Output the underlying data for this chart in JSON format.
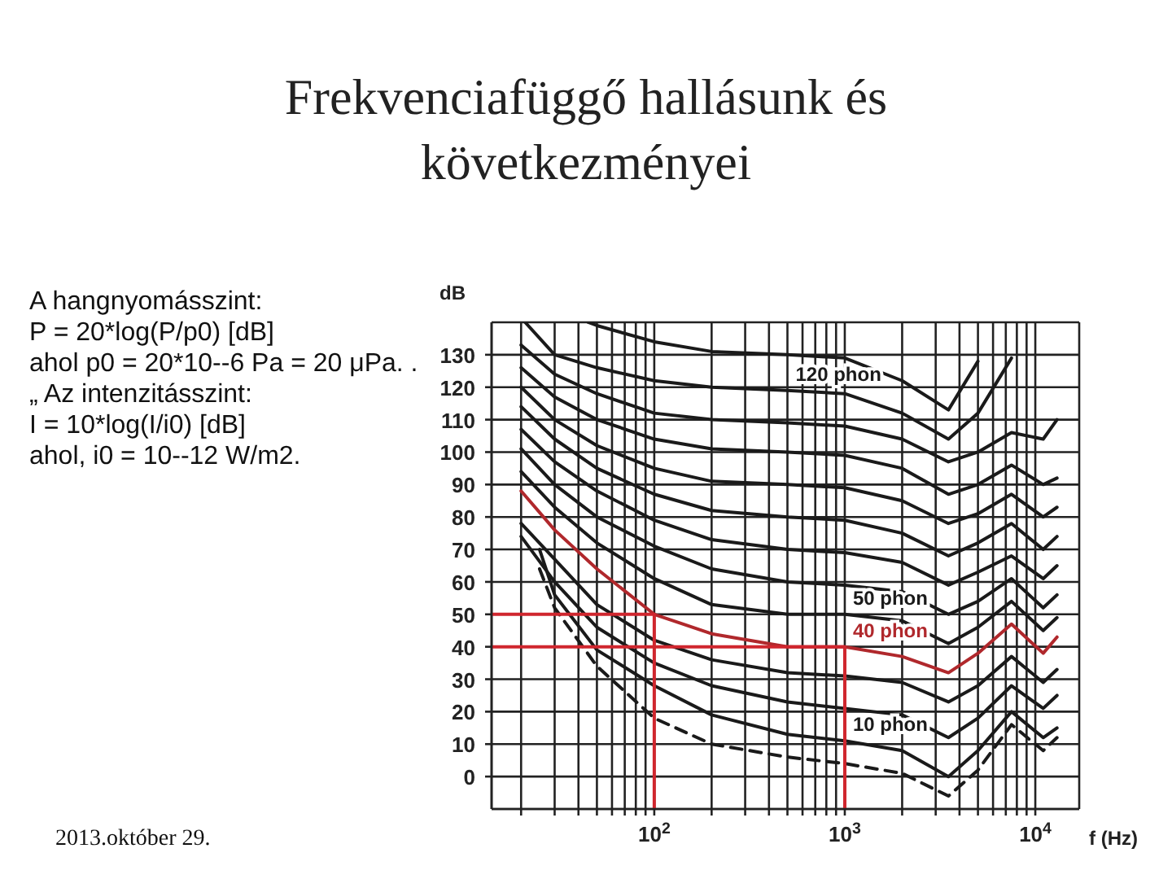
{
  "chart_data": {
    "type": "line",
    "title": "Frekvenciafüggő hallásunk és következményei",
    "xlabel": "f (Hz)",
    "ylabel": "dB",
    "log": "x",
    "grid": true,
    "legend": false,
    "marker": "none",
    "xlim": [
      14,
      17000
    ],
    "ylim": [
      -10,
      140
    ],
    "xticks": [
      {
        "value": 20,
        "label": null
      },
      {
        "value": 30,
        "label": null
      },
      {
        "value": 40,
        "label": null
      },
      {
        "value": 50,
        "label": null
      },
      {
        "value": 60,
        "label": null
      },
      {
        "value": 70,
        "label": null
      },
      {
        "value": 80,
        "label": null
      },
      {
        "value": 90,
        "label": null
      },
      {
        "value": 100,
        "label": "10$^{2}$"
      },
      {
        "value": 200,
        "label": null
      },
      {
        "value": 300,
        "label": null
      },
      {
        "value": 400,
        "label": null
      },
      {
        "value": 500,
        "label": null
      },
      {
        "value": 600,
        "label": null
      },
      {
        "value": 700,
        "label": null
      },
      {
        "value": 800,
        "label": null
      },
      {
        "value": 900,
        "label": null
      },
      {
        "value": 1000,
        "label": "10$^{3}$"
      },
      {
        "value": 2000,
        "label": null
      },
      {
        "value": 3000,
        "label": null
      },
      {
        "value": 4000,
        "label": null
      },
      {
        "value": 5000,
        "label": null
      },
      {
        "value": 6000,
        "label": null
      },
      {
        "value": 7000,
        "label": null
      },
      {
        "value": 8000,
        "label": null
      },
      {
        "value": 9000,
        "label": null
      },
      {
        "value": 10000,
        "label": "10$^{4}$"
      }
    ],
    "yticks": [
      0,
      10,
      20,
      30,
      40,
      50,
      60,
      70,
      80,
      90,
      100,
      110,
      120,
      130
    ],
    "x": [
      20,
      30,
      50,
      100,
      200,
      500,
      1000,
      2000,
      3500,
      5000,
      7500,
      11000,
      13000
    ],
    "series": [
      {
        "color": "#1a1a1a",
        "x": [
          45,
          50,
          100,
          200,
          500,
          1000,
          2000,
          3500,
          5000
        ],
        "values": [
          140,
          139,
          134,
          131,
          130,
          129,
          122,
          113,
          128
        ]
      },
      {
        "name": "120 phon",
        "color": "#1a1a1a",
        "x": [
          21,
          30,
          50,
          100,
          200,
          500,
          1000,
          2000,
          3500,
          5000,
          7500
        ],
        "values": [
          140,
          130,
          126,
          122,
          120,
          119,
          118,
          112,
          104,
          112,
          129
        ]
      },
      {
        "color": "#1a1a1a",
        "values": [
          133,
          124,
          118,
          112,
          110,
          109,
          108,
          104,
          97,
          100,
          106,
          104,
          110
        ]
      },
      {
        "color": "#1a1a1a",
        "values": [
          126,
          117,
          110,
          104,
          101,
          100,
          99,
          95,
          87,
          90,
          96,
          90,
          92
        ]
      },
      {
        "color": "#1a1a1a",
        "values": [
          120,
          110,
          102,
          95,
          91,
          90,
          89,
          85,
          78,
          81,
          87,
          80,
          83
        ]
      },
      {
        "color": "#1a1a1a",
        "values": [
          114,
          104,
          95,
          87,
          82,
          80,
          79,
          75,
          68,
          72,
          78,
          70,
          74
        ]
      },
      {
        "color": "#1a1a1a",
        "values": [
          107,
          97,
          88,
          79,
          73,
          70,
          69,
          66,
          59,
          63,
          68,
          61,
          65
        ]
      },
      {
        "color": "#1a1a1a",
        "values": [
          101,
          90,
          80,
          71,
          64,
          60,
          59,
          57,
          50,
          54,
          61,
          52,
          56
        ]
      },
      {
        "name": "50 phon",
        "color": "#1a1a1a",
        "values": [
          94,
          83,
          72,
          61,
          53,
          50,
          50,
          48,
          41,
          46,
          54,
          45,
          49
        ]
      },
      {
        "name": "40 phon",
        "color": "#b0282c",
        "values": [
          88,
          76,
          64,
          50,
          44,
          40,
          40,
          37,
          32,
          38,
          47,
          38,
          43
        ]
      },
      {
        "color": "#1a1a1a",
        "values": [
          78,
          67,
          53,
          42,
          36,
          32,
          31,
          29,
          23,
          28,
          37,
          29,
          33
        ]
      },
      {
        "color": "#1a1a1a",
        "values": [
          74,
          60,
          46,
          35,
          28,
          23,
          21,
          19,
          12,
          18,
          28,
          21,
          25
        ]
      },
      {
        "name": "10 phon",
        "color": "#1a1a1a",
        "x": [
          25,
          30,
          50,
          100,
          200,
          500,
          1000,
          2000,
          3500,
          5000,
          7500,
          11000,
          13000
        ],
        "values": [
          70,
          56,
          39,
          28,
          19,
          13,
          11,
          8,
          0,
          8,
          20,
          12,
          15
        ]
      },
      {
        "color": "#1a1a1a",
        "line_style": "dashed",
        "x": [
          25,
          30,
          50,
          100,
          200,
          500,
          1000,
          2000,
          3500,
          5000,
          7500,
          11000,
          13000
        ],
        "values": [
          64,
          52,
          34,
          18,
          10,
          6,
          4,
          1,
          -6,
          2,
          16,
          8,
          12
        ]
      },
      {
        "color": "#d0262e",
        "x": [
          14,
          100,
          100
        ],
        "values": [
          50,
          50,
          -10
        ]
      },
      {
        "color": "#d0262e",
        "x": [
          14,
          1000,
          1000
        ],
        "values": [
          40,
          40,
          -10
        ]
      }
    ],
    "annotations": [
      " A hangnyomásszint:",
      "P = 20*log(P/p0) [dB]",
      "ahol p0 = 20*10--6 Pa = 20 μPa. .",
      "„ Az intenzitásszint:",
      "I = 10*log(I/i0) [dB]",
      "ahol, i0 = 10--12 W/m2.",
      "2013.október 29."
    ]
  }
}
